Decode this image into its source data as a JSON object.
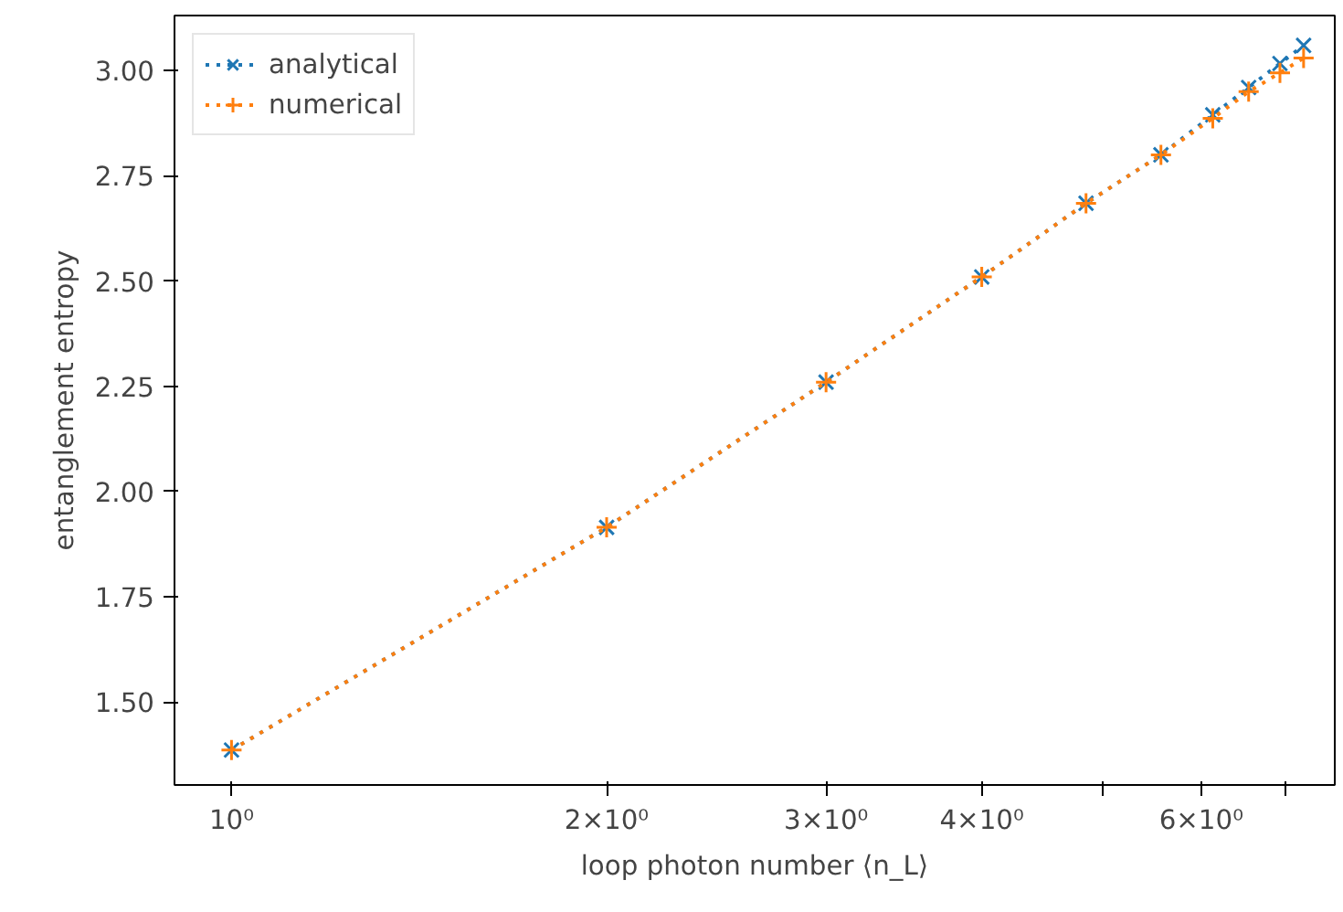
{
  "chart_data": {
    "type": "line",
    "xlabel": "loop photon number ⟨n_L⟩",
    "ylabel": "entanglement entropy",
    "log": "x",
    "xlim": [
      0.9,
      7.68
    ],
    "ylim": [
      1.303,
      3.131
    ],
    "xticks": [
      {
        "value": 1,
        "label": "10⁰"
      },
      {
        "value": 2,
        "label": "2×10⁰"
      },
      {
        "value": 3,
        "label": "3×10⁰"
      },
      {
        "value": 4,
        "label": "4×10⁰"
      },
      {
        "value": 5,
        "label": null
      },
      {
        "value": 6,
        "label": "6×10⁰"
      },
      {
        "value": 7,
        "label": null
      }
    ],
    "yticks": [
      {
        "value": 1.5,
        "label": "1.50"
      },
      {
        "value": 1.75,
        "label": "1.75"
      },
      {
        "value": 2.0,
        "label": "2.00"
      },
      {
        "value": 2.25,
        "label": "2.25"
      },
      {
        "value": 2.5,
        "label": "2.50"
      },
      {
        "value": 2.75,
        "label": "2.75"
      },
      {
        "value": 3.0,
        "label": "3.00"
      }
    ],
    "grid": false,
    "legend": "top left",
    "line_style": "dotted",
    "x": [
      1,
      2,
      3,
      4,
      4.85,
      5.57,
      6.13,
      6.55,
      6.94,
      7.25
    ],
    "series": [
      {
        "name": "analytical",
        "color": "#1f77b4",
        "marker": "cross",
        "values": [
          1.386,
          1.915,
          2.26,
          2.51,
          2.685,
          2.8,
          2.895,
          2.96,
          3.017,
          3.06
        ]
      },
      {
        "name": "numerical",
        "color": "#ff7f0e",
        "marker": "plus",
        "values": [
          1.386,
          1.915,
          2.26,
          2.51,
          2.685,
          2.8,
          2.887,
          2.95,
          2.995,
          3.03
        ]
      }
    ]
  }
}
